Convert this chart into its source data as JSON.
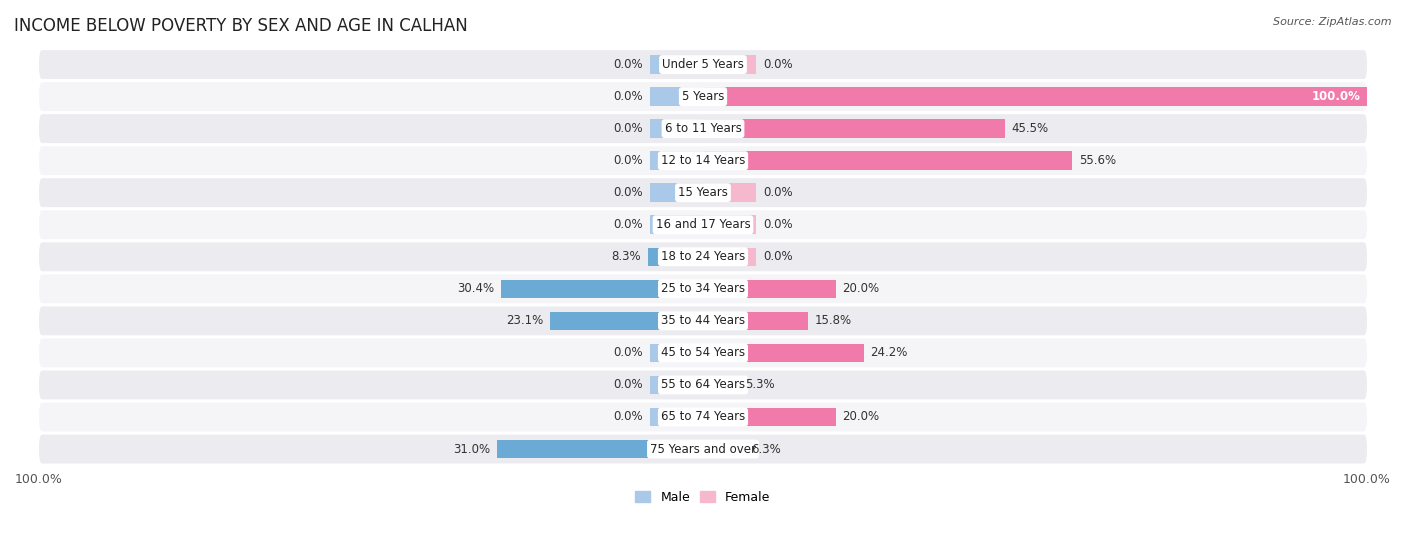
{
  "title": "INCOME BELOW POVERTY BY SEX AND AGE IN CALHAN",
  "source": "Source: ZipAtlas.com",
  "categories": [
    "Under 5 Years",
    "5 Years",
    "6 to 11 Years",
    "12 to 14 Years",
    "15 Years",
    "16 and 17 Years",
    "18 to 24 Years",
    "25 to 34 Years",
    "35 to 44 Years",
    "45 to 54 Years",
    "55 to 64 Years",
    "65 to 74 Years",
    "75 Years and over"
  ],
  "male": [
    0.0,
    0.0,
    0.0,
    0.0,
    0.0,
    0.0,
    8.3,
    30.4,
    23.1,
    0.0,
    0.0,
    0.0,
    31.0
  ],
  "female": [
    0.0,
    100.0,
    45.5,
    55.6,
    0.0,
    0.0,
    0.0,
    20.0,
    15.8,
    24.2,
    5.3,
    20.0,
    6.3
  ],
  "male_color_light": "#aac9e8",
  "male_color_dark": "#6aaad4",
  "female_color_light": "#f5b8cc",
  "female_color_dark": "#f07aaa",
  "row_color_odd": "#ebebf0",
  "row_color_even": "#f5f5f8",
  "axis_max": 100.0,
  "legend_male": "Male",
  "legend_female": "Female",
  "title_fontsize": 12,
  "label_fontsize": 8.5,
  "tick_fontsize": 9,
  "stub_size": 8.0,
  "bar_height": 0.58
}
